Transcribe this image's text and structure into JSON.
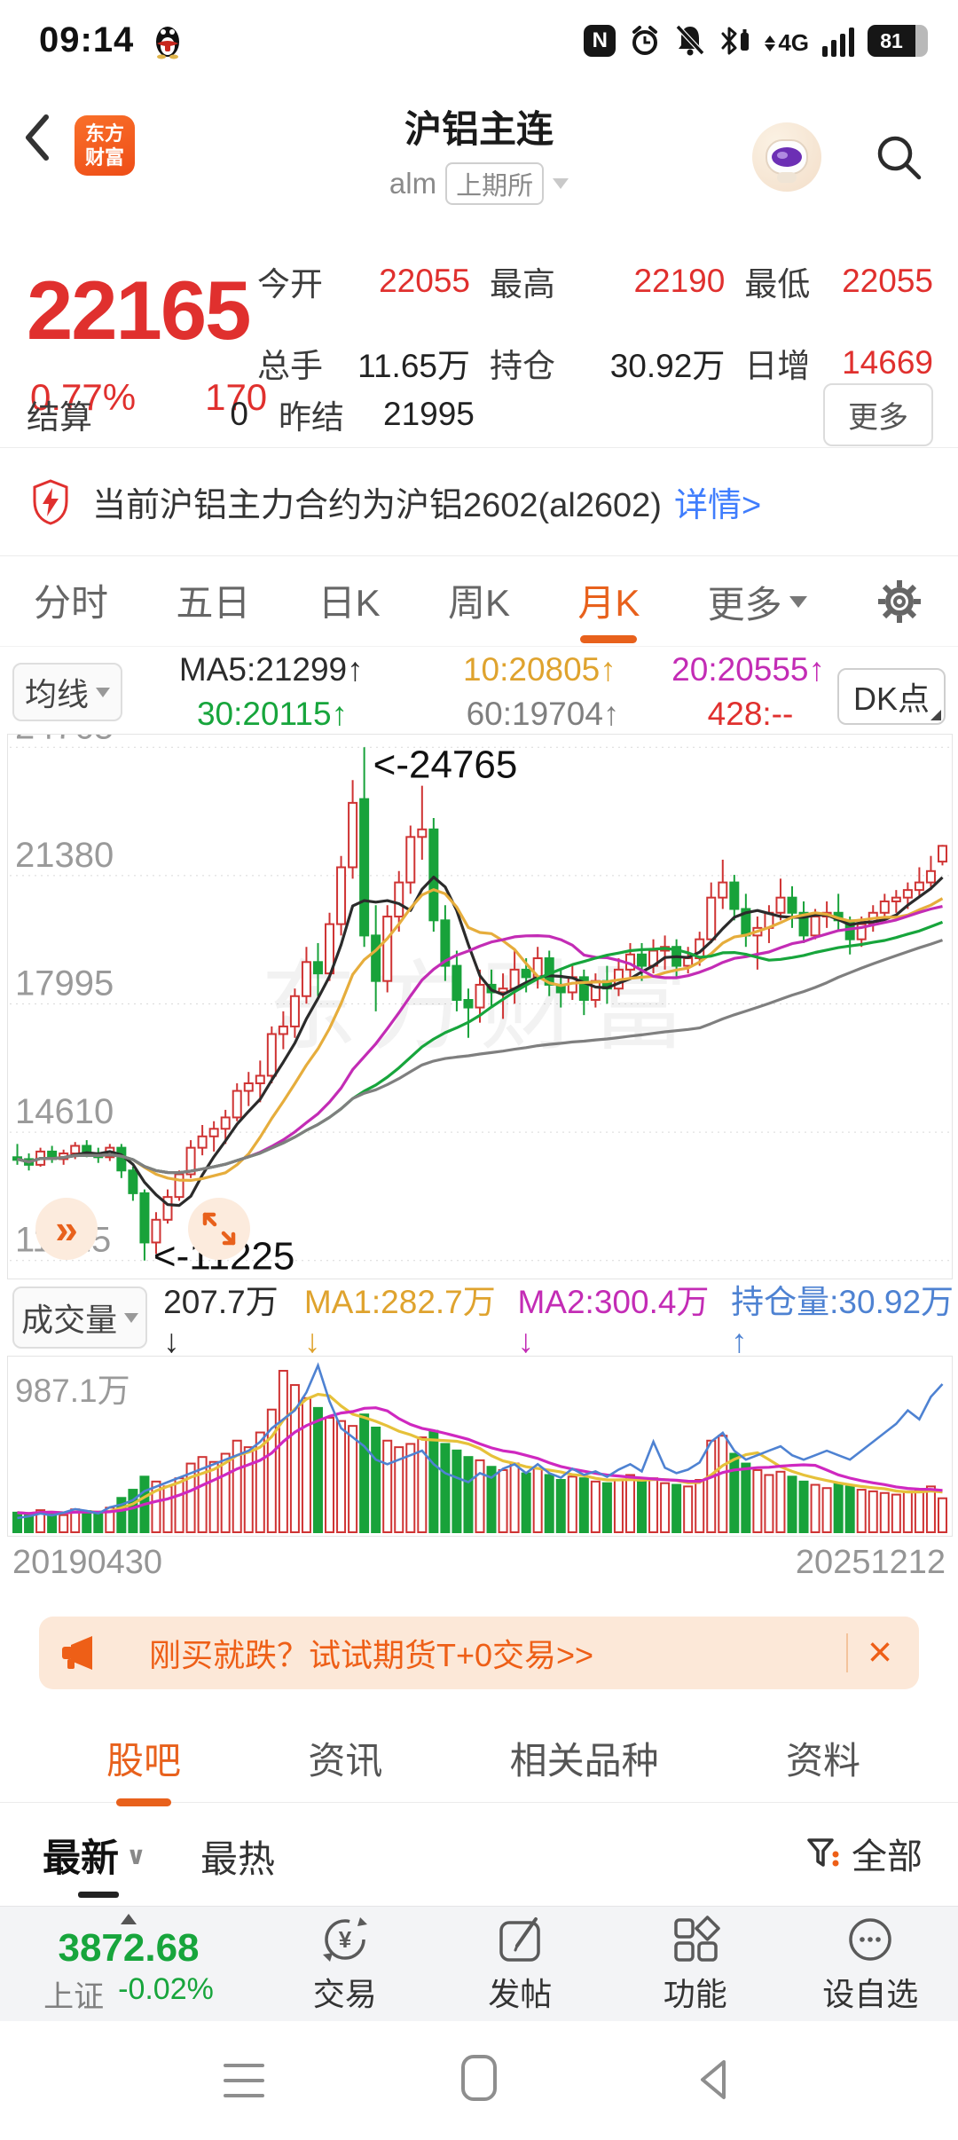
{
  "status_bar": {
    "time": "09:14",
    "network": "4G",
    "battery": "81"
  },
  "header": {
    "title": "沪铝主连",
    "code": "alm",
    "exchange_badge": "上期所",
    "logo_line1": "东方",
    "logo_line2": "财富"
  },
  "quote": {
    "price": "22165",
    "change_pct": "0.77%",
    "change": "170",
    "fields_row1": [
      {
        "label": "今开",
        "value": "22055"
      },
      {
        "label": "最高",
        "value": "22190"
      },
      {
        "label": "最低",
        "value": "22055"
      }
    ],
    "fields_row2": [
      {
        "label": "总手",
        "value": "11.65万"
      },
      {
        "label": "持仓",
        "value": "30.92万"
      },
      {
        "label": "日增",
        "value": "14669"
      }
    ],
    "settle_label": "结算",
    "settle_value": "0",
    "prev_settle_label": "昨结",
    "prev_settle_value": "21995",
    "more_label": "更多"
  },
  "notice": {
    "text": "当前沪铝主力合约为沪铝2602(al2602)",
    "link": "详情>"
  },
  "period_tabs": {
    "items": [
      "分时",
      "五日",
      "日K",
      "周K",
      "月K"
    ],
    "active": "月K",
    "more": "更多"
  },
  "ma_panel": {
    "button": "均线",
    "dk": "DK点",
    "row1": [
      {
        "t": "MA5:21299↑"
      },
      {
        "t": "10:20805↑"
      },
      {
        "t": "20:20555↑"
      }
    ],
    "row2": [
      {
        "t": "30:20115↑"
      },
      {
        "t": "60:19704↑"
      },
      {
        "t": "428:--"
      }
    ]
  },
  "volume_panel": {
    "button": "成交量",
    "value": "207.7万↓",
    "ma1": "MA1:282.7万↓",
    "ma2": "MA2:300.4万↓",
    "oi": "持仓量:30.92万↑",
    "max_label": "987.1万"
  },
  "dates": {
    "start": "20190430",
    "end": "20251212"
  },
  "ad": {
    "text": "刚买就跌？试试期货T+0交易>>",
    "close": "×"
  },
  "community_tabs": {
    "items": [
      "股吧",
      "资讯",
      "相关品种",
      "资料"
    ],
    "active": "股吧"
  },
  "sort_row": {
    "latest": "最新",
    "hottest": "最热",
    "filter": "全部"
  },
  "bottom_bar": {
    "index_value": "3872.68",
    "index_name": "上证",
    "index_change": "-0.02%",
    "items": [
      "交易",
      "发帖",
      "功能",
      "设自选"
    ]
  },
  "chart_data": {
    "type": "candlestick+volume",
    "title": "沪铝主连 月K线",
    "watermark": "东方财富",
    "axis_values": [
      24765,
      21380,
      17995,
      14610,
      11225
    ],
    "value_range": [
      10750,
      25100
    ],
    "x_range": [
      "20190430",
      "20251212"
    ],
    "annotations": [
      {
        "text": "<-24765",
        "index": 30,
        "anchor": "high"
      },
      {
        "text": "<-11225",
        "index": 11,
        "anchor": "low"
      }
    ],
    "ma_windows": [
      5,
      10,
      20,
      30,
      60
    ],
    "ma_colors": [
      "#2b2b2b",
      "#e6ad3c",
      "#c32cb5",
      "#17a53c",
      "#7f7f7f"
    ],
    "vol_ma_windows": [
      5,
      10
    ],
    "vol_ma_colors": [
      "#e6c13a",
      "#cf28c0"
    ],
    "oi_color": "#4e82d2",
    "up_color": "#cf3333",
    "down_color": "#18a23a",
    "vol_max": 987.1,
    "candles": [
      [
        13950,
        14300,
        13750,
        13900,
        120,
        16.0
      ],
      [
        13900,
        14050,
        13600,
        13750,
        110,
        16.2
      ],
      [
        13750,
        14200,
        13700,
        14100,
        135,
        16.5
      ],
      [
        14100,
        14250,
        13800,
        13900,
        125,
        16.3
      ],
      [
        13900,
        14150,
        13750,
        14050,
        105,
        16.6
      ],
      [
        14050,
        14350,
        13900,
        14250,
        140,
        17.0
      ],
      [
        14250,
        14400,
        13950,
        14050,
        130,
        16.8
      ],
      [
        14050,
        14200,
        13800,
        13950,
        115,
        16.5
      ],
      [
        13950,
        14300,
        13850,
        14200,
        150,
        17.2
      ],
      [
        14200,
        14300,
        13400,
        13600,
        210,
        17.5
      ],
      [
        13600,
        13700,
        12800,
        13000,
        260,
        18.0
      ],
      [
        13000,
        13100,
        11225,
        11700,
        340,
        19.0
      ],
      [
        11700,
        12500,
        11400,
        12300,
        310,
        19.5
      ],
      [
        12300,
        13100,
        12200,
        12900,
        280,
        20.0
      ],
      [
        12900,
        13600,
        12800,
        13500,
        330,
        20.5
      ],
      [
        13500,
        14400,
        13400,
        14200,
        420,
        21.0
      ],
      [
        14200,
        14800,
        14000,
        14500,
        460,
        21.5
      ],
      [
        14500,
        14900,
        14100,
        14700,
        430,
        22.0
      ],
      [
        14700,
        15200,
        14300,
        15000,
        480,
        22.5
      ],
      [
        15000,
        15900,
        14900,
        15700,
        560,
        23.0
      ],
      [
        15700,
        16200,
        15300,
        15900,
        520,
        23.5
      ],
      [
        15900,
        16500,
        15400,
        16100,
        610,
        24.5
      ],
      [
        16100,
        17400,
        15900,
        17200,
        750,
        26.0
      ],
      [
        17200,
        17800,
        16800,
        17400,
        987,
        27.0
      ],
      [
        17400,
        18400,
        17100,
        18200,
        900,
        28.0
      ],
      [
        18200,
        19500,
        18000,
        19100,
        820,
        30.0
      ],
      [
        19100,
        19600,
        18200,
        18800,
        760,
        33.0
      ],
      [
        18800,
        20400,
        18600,
        20100,
        700,
        29.0
      ],
      [
        20100,
        21900,
        19800,
        21600,
        680,
        26.0
      ],
      [
        21600,
        23900,
        21300,
        23300,
        650,
        25.0
      ],
      [
        23400,
        24765,
        19500,
        19800,
        720,
        24.0
      ],
      [
        19800,
        20600,
        17800,
        18600,
        640,
        22.5
      ],
      [
        18600,
        20600,
        18300,
        20300,
        560,
        22.0
      ],
      [
        20300,
        21500,
        19900,
        21200,
        520,
        22.5
      ],
      [
        21200,
        22700,
        20900,
        22400,
        540,
        23.0
      ],
      [
        22400,
        23750,
        21800,
        22600,
        580,
        23.5
      ],
      [
        22600,
        22900,
        19900,
        20200,
        620,
        22.0
      ],
      [
        20200,
        20600,
        18600,
        19000,
        540,
        21.0
      ],
      [
        19000,
        19400,
        17800,
        18100,
        500,
        20.5
      ],
      [
        18100,
        18400,
        17100,
        17900,
        460,
        20.0
      ],
      [
        17900,
        18900,
        17500,
        18500,
        440,
        21.0
      ],
      [
        18500,
        18900,
        17900,
        18300,
        400,
        20.5
      ],
      [
        18300,
        18800,
        17600,
        18400,
        380,
        21.5
      ],
      [
        18400,
        19400,
        18000,
        18900,
        420,
        22.0
      ],
      [
        18900,
        19200,
        18300,
        18700,
        360,
        21.0
      ],
      [
        18700,
        19500,
        18400,
        19200,
        390,
        22.0
      ],
      [
        19200,
        19400,
        18200,
        18500,
        350,
        21.0
      ],
      [
        18500,
        18900,
        17900,
        18300,
        320,
        20.5
      ],
      [
        18300,
        19000,
        18100,
        18700,
        340,
        21.5
      ],
      [
        18700,
        18900,
        17700,
        18100,
        330,
        20.8
      ],
      [
        18100,
        18800,
        17900,
        18600,
        310,
        21.2
      ],
      [
        18600,
        19000,
        18000,
        18400,
        300,
        20.6
      ],
      [
        18400,
        19200,
        18200,
        18900,
        320,
        21.4
      ],
      [
        18900,
        19600,
        18700,
        19300,
        350,
        22.0
      ],
      [
        19300,
        19600,
        18600,
        19000,
        310,
        21.2
      ],
      [
        19000,
        19700,
        18800,
        19400,
        330,
        24.5
      ],
      [
        19400,
        19800,
        18900,
        19500,
        300,
        21.6
      ],
      [
        19500,
        19700,
        18700,
        19000,
        290,
        21.0
      ],
      [
        19000,
        19500,
        18800,
        19200,
        280,
        21.4
      ],
      [
        19200,
        19900,
        19000,
        19700,
        320,
        22.2
      ],
      [
        19700,
        21200,
        19600,
        20800,
        560,
        24.5
      ],
      [
        20800,
        21800,
        20500,
        21200,
        590,
        25.5
      ],
      [
        21200,
        21400,
        20200,
        20500,
        480,
        23.5
      ],
      [
        20500,
        20900,
        19500,
        19800,
        420,
        22.5
      ],
      [
        19800,
        20300,
        18900,
        20000,
        380,
        23.0
      ],
      [
        20000,
        20600,
        19600,
        20400,
        350,
        23.5
      ],
      [
        20400,
        21300,
        20200,
        20800,
        370,
        24.0
      ],
      [
        20800,
        21100,
        20000,
        20400,
        340,
        23.0
      ],
      [
        20400,
        20700,
        19600,
        19800,
        310,
        22.5
      ],
      [
        19800,
        20500,
        19700,
        20300,
        290,
        23.0
      ],
      [
        20300,
        20700,
        20000,
        20400,
        270,
        23.5
      ],
      [
        20400,
        20900,
        19900,
        20200,
        300,
        23.0
      ],
      [
        20200,
        20300,
        19300,
        19700,
        280,
        22.5
      ],
      [
        19700,
        20300,
        19500,
        20100,
        260,
        23.5
      ],
      [
        20100,
        20600,
        19900,
        20400,
        250,
        24.5
      ],
      [
        20400,
        20900,
        20200,
        20700,
        240,
        25.5
      ],
      [
        20700,
        21000,
        20400,
        20800,
        230,
        26.5
      ],
      [
        20800,
        21200,
        20500,
        21000,
        250,
        28.0
      ],
      [
        21000,
        21600,
        20800,
        21200,
        260,
        27.0
      ],
      [
        21200,
        21900,
        21000,
        21500,
        280,
        29.5
      ],
      [
        21750,
        22190,
        21650,
        22165,
        207.7,
        30.92
      ]
    ]
  }
}
